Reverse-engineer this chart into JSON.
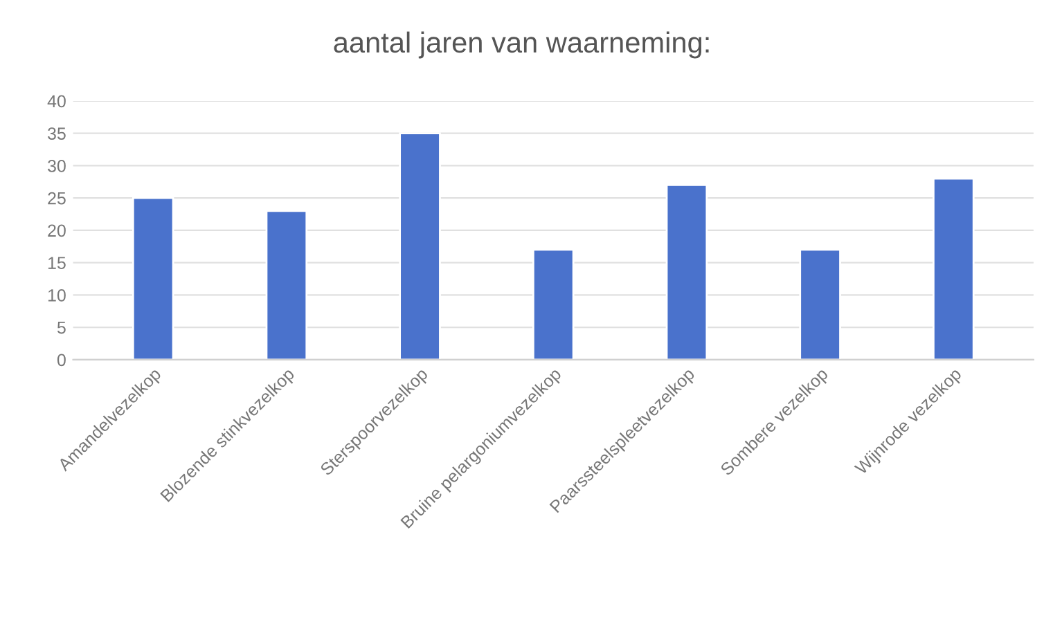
{
  "chart_data": {
    "type": "bar",
    "title": "aantal jaren van waarneming:",
    "categories": [
      "Amandelvezelkop",
      "Blozende stinkvezelkop",
      "Sterspoorvezelkop",
      "Bruine pelargoniumvezelkop",
      "Paarssteelspleetvezelkop",
      "Sombere vezelkop",
      "Wijnrode vezelkop"
    ],
    "values": [
      25,
      23,
      35,
      17,
      27,
      17,
      28
    ],
    "color": "#4a72cc",
    "ylim": [
      0,
      40
    ],
    "yticks": [
      0,
      5,
      10,
      15,
      20,
      25,
      30,
      35,
      40
    ],
    "grid": "y",
    "legend": false
  }
}
